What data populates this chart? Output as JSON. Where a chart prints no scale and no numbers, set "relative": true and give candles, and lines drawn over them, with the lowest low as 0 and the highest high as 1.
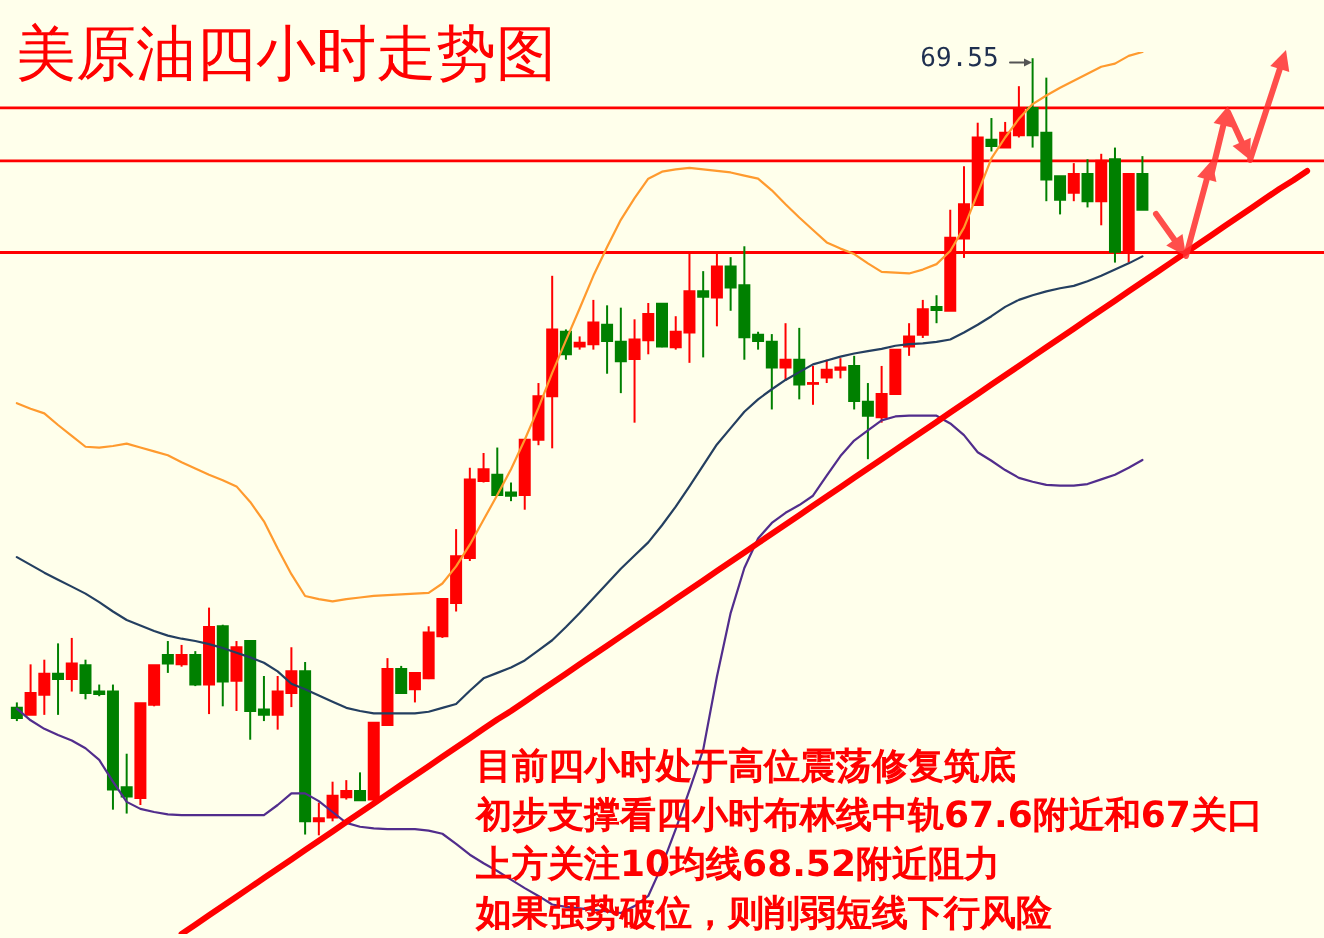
{
  "chart_data": {
    "type": "candlestick",
    "title": "美原油四小时走势图",
    "relative": true,
    "categories": [
      null,
      null,
      null,
      null,
      null,
      null,
      null,
      null,
      null,
      null,
      null,
      null,
      null,
      null,
      null,
      null,
      null,
      null,
      null,
      null,
      null,
      null,
      null,
      null,
      null,
      null,
      null,
      null,
      null,
      null,
      null,
      null,
      null,
      null,
      null,
      null,
      null,
      null,
      null,
      null,
      null,
      null,
      null,
      null,
      null,
      null,
      null,
      null,
      null,
      null,
      null,
      null,
      null,
      null,
      null,
      null,
      null,
      null,
      null,
      null,
      null,
      null,
      null,
      null,
      null,
      null,
      null,
      null,
      null,
      null,
      null,
      null,
      null,
      null,
      null,
      null,
      null,
      null,
      null,
      null,
      null,
      null,
      null,
      null,
      null,
      null,
      null,
      null,
      null,
      null,
      null,
      null,
      null,
      null,
      null
    ],
    "ohlc": [
      [
        0.164,
        0.171,
        0.147,
        0.151
      ],
      [
        0.155,
        0.22,
        0.155,
        0.183
      ],
      [
        0.181,
        0.226,
        0.155,
        0.208
      ],
      [
        0.208,
        0.247,
        0.155,
        0.201
      ],
      [
        0.201,
        0.254,
        0.185,
        0.221
      ],
      [
        0.219,
        0.226,
        0.175,
        0.183
      ],
      [
        0.185,
        0.194,
        0.179,
        0.182
      ],
      [
        0.185,
        0.194,
        0.033,
        0.059
      ],
      [
        0.062,
        0.105,
        0.028,
        0.05
      ],
      [
        0.048,
        0.17,
        0.039,
        0.17
      ],
      [
        0.168,
        0.219,
        0.166,
        0.219
      ],
      [
        0.232,
        0.25,
        0.209,
        0.221
      ],
      [
        0.22,
        0.245,
        0.217,
        0.232
      ],
      [
        0.232,
        0.237,
        0.192,
        0.194
      ],
      [
        0.194,
        0.293,
        0.156,
        0.268
      ],
      [
        0.269,
        0.271,
        0.166,
        0.198
      ],
      [
        0.199,
        0.25,
        0.16,
        0.242
      ],
      [
        0.25,
        0.25,
        0.123,
        0.16
      ],
      [
        0.162,
        0.205,
        0.147,
        0.155
      ],
      [
        0.155,
        0.205,
        0.136,
        0.185
      ],
      [
        0.183,
        0.242,
        0.165,
        0.211
      ],
      [
        0.211,
        0.223,
        0.001,
        0.018
      ],
      [
        0.018,
        0.042,
        0,
        0.022
      ],
      [
        0.023,
        0.069,
        0.018,
        0.051
      ],
      [
        0.049,
        0.071,
        0.046,
        0.057
      ],
      [
        0.057,
        0.081,
        0.045,
        0.045
      ],
      [
        0.046,
        0.145,
        0.039,
        0.145
      ],
      [
        0.142,
        0.228,
        0.142,
        0.214
      ],
      [
        0.214,
        0.218,
        0.182,
        0.183
      ],
      [
        0.188,
        0.209,
        0.171,
        0.209
      ],
      [
        0.202,
        0.269,
        0.201,
        0.261
      ],
      [
        0.256,
        0.304,
        0.254,
        0.304
      ],
      [
        0.299,
        0.394,
        0.288,
        0.359
      ],
      [
        0.357,
        0.473,
        0.353,
        0.458
      ],
      [
        0.456,
        0.492,
        0.454,
        0.471
      ],
      [
        0.464,
        0.499,
        0.437,
        0.438
      ],
      [
        0.441,
        0.454,
        0.43,
        0.437
      ],
      [
        0.438,
        0.509,
        0.419,
        0.509
      ],
      [
        0.509,
        0.582,
        0.502,
        0.565
      ],
      [
        0.565,
        0.72,
        0.498,
        0.651
      ],
      [
        0.648,
        0.651,
        0.612,
        0.619
      ],
      [
        0.629,
        0.642,
        0.625,
        0.634
      ],
      [
        0.632,
        0.689,
        0.625,
        0.66
      ],
      [
        0.657,
        0.682,
        0.594,
        0.636
      ],
      [
        0.635,
        0.679,
        0.569,
        0.61
      ],
      [
        0.613,
        0.664,
        0.531,
        0.638
      ],
      [
        0.637,
        0.685,
        0.619,
        0.671
      ],
      [
        0.684,
        0.685,
        0.628,
        0.629
      ],
      [
        0.628,
        0.668,
        0.625,
        0.648
      ],
      [
        0.647,
        0.751,
        0.608,
        0.7
      ],
      [
        0.7,
        0.726,
        0.615,
        0.693
      ],
      [
        0.692,
        0.751,
        0.655,
        0.732
      ],
      [
        0.732,
        0.744,
        0.675,
        0.705
      ],
      [
        0.708,
        0.758,
        0.612,
        0.641
      ],
      [
        0.644,
        0.648,
        0.625,
        0.636
      ],
      [
        0.635,
        0.645,
        0.548,
        0.602
      ],
      [
        0.602,
        0.659,
        0.585,
        0.612
      ],
      [
        0.612,
        0.653,
        0.561,
        0.58
      ],
      [
        0.581,
        0.604,
        0.554,
        0.582
      ],
      [
        0.589,
        0.612,
        0.582,
        0.599
      ],
      [
        0.599,
        0.614,
        0.588,
        0.602
      ],
      [
        0.604,
        0.617,
        0.548,
        0.559
      ],
      [
        0.558,
        0.582,
        0.484,
        0.54
      ],
      [
        0.538,
        0.604,
        0.531,
        0.568
      ],
      [
        0.568,
        0.625,
        0.567,
        0.625
      ],
      [
        0.629,
        0.659,
        0.617,
        0.642
      ],
      [
        0.644,
        0.689,
        0.64,
        0.677
      ],
      [
        0.68,
        0.695,
        0.659,
        0.676
      ],
      [
        0.675,
        0.805,
        0.675,
        0.769
      ],
      [
        0.768,
        0.861,
        0.743,
        0.812
      ],
      [
        0.811,
        0.917,
        0.811,
        0.898
      ],
      [
        0.895,
        0.923,
        0.88,
        0.887
      ],
      [
        0.885,
        0.918,
        0.885,
        0.904
      ],
      [
        0.901,
        0.964,
        0.898,
        0.936
      ],
      [
        0.936,
        1,
        0.885,
        0.901
      ],
      [
        0.904,
        0.975,
        0.816,
        0.844
      ],
      [
        0.848,
        0.848,
        0.799,
        0.818
      ],
      [
        0.827,
        0.865,
        0.816,
        0.851
      ],
      [
        0.851,
        0.87,
        0.808,
        0.816
      ],
      [
        0.816,
        0.877,
        0.785,
        0.868
      ],
      [
        0.87,
        0.885,
        0.737,
        0.751
      ],
      [
        0.751,
        0.851,
        0.737,
        0.851
      ],
      [
        0.851,
        0.874,
        0.805,
        0.805
      ],
      null,
      null,
      null,
      null,
      null,
      null,
      null,
      null,
      null,
      null,
      null,
      null
    ],
    "colors": [
      "#008000",
      "#ff0000",
      "#ff0000",
      "#008000",
      "#ff0000",
      "#008000",
      "#008000",
      "#008000",
      "#008000",
      "#ff0000",
      "#ff0000",
      "#008000",
      "#ff0000",
      "#008000",
      "#ff0000",
      "#008000",
      "#ff0000",
      "#008000",
      "#008000",
      "#ff0000",
      "#ff0000",
      "#008000",
      "#ff0000",
      "#ff0000",
      "#ff0000",
      "#008000",
      "#ff0000",
      "#ff0000",
      "#008000",
      "#ff0000",
      "#ff0000",
      "#ff0000",
      "#ff0000",
      "#ff0000",
      "#ff0000",
      "#008000",
      "#008000",
      "#ff0000",
      "#ff0000",
      "#ff0000",
      "#008000",
      "#ff0000",
      "#ff0000",
      "#008000",
      "#008000",
      "#ff0000",
      "#ff0000",
      "#008000",
      "#ff0000",
      "#ff0000",
      "#008000",
      "#ff0000",
      "#008000",
      "#008000",
      "#008000",
      "#008000",
      "#ff0000",
      "#008000",
      "#ff0000",
      "#ff0000",
      "#ff0000",
      "#008000",
      "#008000",
      "#ff0000",
      "#ff0000",
      "#ff0000",
      "#ff0000",
      "#008000",
      "#ff0000",
      "#ff0000",
      "#ff0000",
      "#008000",
      "#ff0000",
      "#ff0000",
      "#008000",
      "#008000",
      "#008000",
      "#ff0000",
      "#008000",
      "#ff0000",
      "#008000",
      "#ff0000",
      "#008000",
      null,
      null,
      null,
      null,
      null,
      null,
      null,
      null,
      null,
      null,
      null,
      null
    ],
    "series": [
      {
        "type": "line",
        "color": "#ff9a2e",
        "values": [
          0.556,
          0.549,
          0.543,
          0.528,
          0.514,
          0.5,
          0.499,
          0.501,
          0.504,
          0.499,
          0.494,
          0.489,
          0.48,
          0.472,
          0.464,
          0.457,
          0.449,
          0.429,
          0.404,
          0.369,
          0.336,
          0.308,
          0.304,
          0.301,
          0.304,
          0.306,
          0.308,
          0.309,
          0.31,
          0.311,
          0.312,
          0.324,
          0.346,
          0.374,
          0.406,
          0.438,
          0.471,
          0.509,
          0.55,
          0.595,
          0.637,
          0.678,
          0.72,
          0.757,
          0.792,
          0.82,
          0.845,
          0.854,
          0.857,
          0.859,
          0.857,
          0.855,
          0.853,
          0.849,
          0.845,
          0.83,
          0.812,
          0.795,
          0.779,
          0.763,
          0.755,
          0.748,
          0.736,
          0.725,
          0.724,
          0.723,
          0.728,
          0.735,
          0.752,
          0.782,
          0.826,
          0.871,
          0.898,
          0.922,
          0.941,
          0.952,
          0.962,
          0.971,
          0.98,
          0.989,
          0.993,
          1.003,
          1.008,
          null,
          null,
          null,
          null,
          null,
          null,
          null,
          null,
          null,
          null,
          null,
          null
        ]
      },
      {
        "type": "line",
        "color": "#243f60",
        "values": [
          0.358,
          0.348,
          0.338,
          0.329,
          0.32,
          0.311,
          0.3,
          0.288,
          0.277,
          0.27,
          0.263,
          0.257,
          0.253,
          0.25,
          0.246,
          0.241,
          0.235,
          0.229,
          0.222,
          0.211,
          0.195,
          0.188,
          0.18,
          0.172,
          0.164,
          0.16,
          0.157,
          0.157,
          0.157,
          0.157,
          0.159,
          0.164,
          0.169,
          0.186,
          0.202,
          0.209,
          0.216,
          0.225,
          0.238,
          0.251,
          0.268,
          0.286,
          0.305,
          0.324,
          0.343,
          0.36,
          0.377,
          0.399,
          0.423,
          0.449,
          0.476,
          0.503,
          0.524,
          0.545,
          0.561,
          0.574,
          0.586,
          0.596,
          0.606,
          0.611,
          0.616,
          0.62,
          0.623,
          0.626,
          0.63,
          0.632,
          0.633,
          0.635,
          0.638,
          0.647,
          0.657,
          0.668,
          0.68,
          0.689,
          0.695,
          0.7,
          0.704,
          0.707,
          0.713,
          0.72,
          0.728,
          0.736,
          0.745,
          null,
          null,
          null,
          null,
          null,
          null,
          null,
          null,
          null,
          null,
          null,
          null
        ]
      },
      {
        "type": "line",
        "color": "#512d8c",
        "values": [
          0.163,
          0.148,
          0.137,
          0.129,
          0.122,
          0.112,
          0.097,
          0.069,
          0.043,
          0.034,
          0.03,
          0.027,
          0.026,
          0.026,
          0.026,
          0.026,
          0.026,
          0.026,
          0.026,
          0.039,
          0.054,
          0.054,
          0.044,
          0.03,
          0.016,
          0.011,
          0.009,
          0.008,
          0.008,
          0.008,
          0.006,
          0.002,
          -0.011,
          -0.025,
          -0.036,
          -0.046,
          -0.057,
          -0.068,
          -0.078,
          -0.089,
          -0.092,
          -0.094,
          -0.096,
          -0.098,
          -0.1,
          -0.091,
          -0.078,
          -0.039,
          0.008,
          0.058,
          0.11,
          0.204,
          0.286,
          0.344,
          0.382,
          0.402,
          0.415,
          0.425,
          0.437,
          0.463,
          0.488,
          0.508,
          0.521,
          0.534,
          0.539,
          0.54,
          0.54,
          0.54,
          0.53,
          0.515,
          0.493,
          0.482,
          0.47,
          0.46,
          0.455,
          0.451,
          0.45,
          0.45,
          0.452,
          0.458,
          0.464,
          0.473,
          0.483,
          null,
          null,
          null,
          null,
          null,
          null,
          null,
          null,
          null,
          null,
          null,
          null
        ]
      },
      {
        "type": "line",
        "color": "#ff0000",
        "values": [
          null,
          null,
          null,
          null,
          null,
          null,
          null,
          null,
          null,
          null,
          null,
          null,
          -0.127,
          -0.115,
          -0.103,
          -0.091,
          -0.079,
          -0.067,
          -0.055,
          -0.043,
          -0.031,
          -0.019,
          -0.007,
          0.005,
          0.017,
          0.029,
          0.041,
          0.053,
          0.065,
          0.077,
          0.089,
          0.101,
          0.113,
          0.125,
          0.137,
          0.149,
          0.16,
          0.172,
          0.184,
          0.196,
          0.208,
          0.22,
          0.232,
          0.244,
          0.256,
          0.268,
          0.28,
          0.292,
          0.304,
          0.316,
          0.328,
          0.34,
          0.352,
          0.364,
          0.376,
          0.388,
          0.4,
          0.412,
          0.424,
          0.436,
          0.448,
          0.46,
          0.472,
          0.484,
          0.496,
          0.508,
          0.52,
          0.532,
          0.544,
          0.556,
          0.568,
          0.58,
          0.592,
          0.604,
          0.616,
          0.628,
          0.64,
          0.652,
          0.664,
          0.676,
          0.688,
          0.7,
          0.712,
          0.724,
          0.736,
          0.748,
          0.76,
          0.772,
          0.784,
          0.796,
          0.808,
          0.82,
          0.832,
          0.843,
          0.855
        ]
      }
    ],
    "ref_lines": [
      {
        "axis": "y",
        "value": 0.936,
        "color": "#ff0000"
      },
      {
        "axis": "y",
        "value": 0.868,
        "color": "#ff0000"
      },
      {
        "axis": "y",
        "value": 0.75,
        "color": "#ff0000"
      }
    ],
    "annotations": [
      "69.55",
      "目前四小时处于高位震荡修复筑底",
      "初步支撑看四小时布林线中轨67.6附近和67关口",
      "上方关注10均线68.52附近阻力",
      "如果强势破位，则削弱短线下行风险"
    ]
  }
}
